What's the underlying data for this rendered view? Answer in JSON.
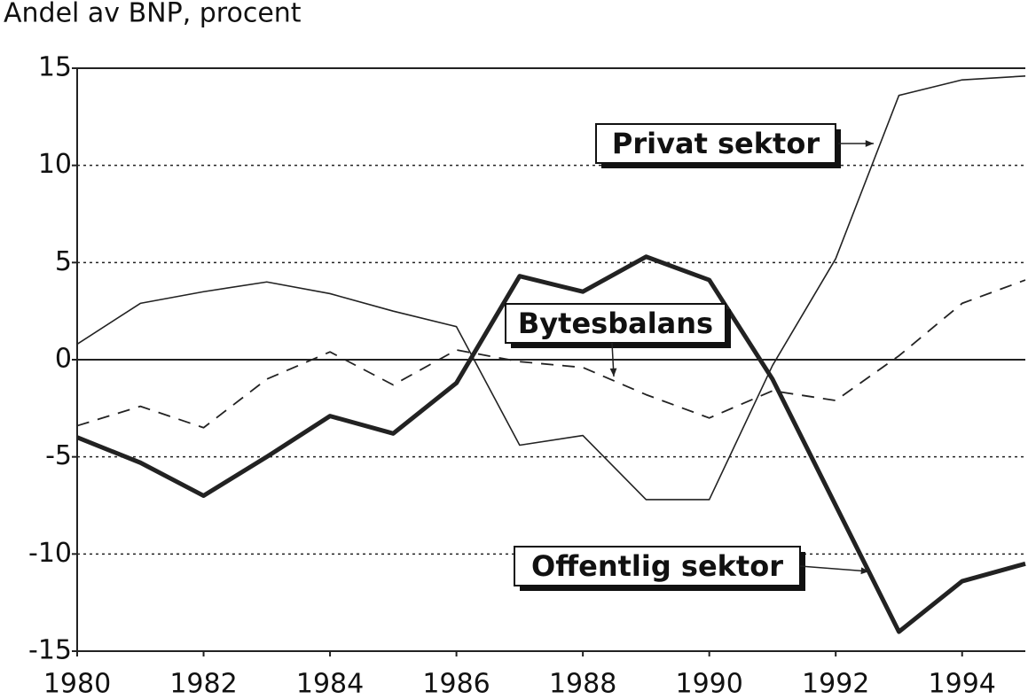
{
  "chart_data": {
    "type": "line",
    "title": "Andel av BNP, procent",
    "x": [
      1980,
      1981,
      1982,
      1983,
      1984,
      1985,
      1986,
      1987,
      1988,
      1989,
      1990,
      1991,
      1992,
      1993,
      1994,
      1995
    ],
    "series": [
      {
        "name": "Privat sektor",
        "color": "#222222",
        "style": "solid",
        "values": [
          0.8,
          2.9,
          3.5,
          4.0,
          3.4,
          2.5,
          1.7,
          -4.4,
          -3.9,
          -7.2,
          -7.2,
          -0.3,
          5.2,
          13.6,
          14.4,
          14.6
        ]
      },
      {
        "name": "Bytesbalans",
        "color": "#222222",
        "style": "dashed",
        "values": [
          -3.4,
          -2.4,
          -3.5,
          -1.0,
          0.4,
          -1.3,
          0.5,
          -0.1,
          -0.4,
          -1.8,
          -3.0,
          -1.6,
          -2.1,
          0.2,
          2.9,
          4.1
        ]
      },
      {
        "name": "Offentlig sektor",
        "color": "#222222",
        "style": "thick",
        "values": [
          -4.0,
          -5.3,
          -7.0,
          -5.0,
          -2.9,
          -3.8,
          -1.2,
          4.3,
          3.5,
          5.3,
          4.1,
          -1.0,
          -7.5,
          -14.0,
          -11.4,
          -10.5
        ]
      }
    ],
    "xlim": [
      1980,
      1995
    ],
    "xticks": [
      1980,
      1982,
      1984,
      1986,
      1988,
      1990,
      1992,
      1994
    ],
    "ylim": [
      -15,
      15
    ],
    "yticks": [
      -15,
      -10,
      -5,
      0,
      5,
      10,
      15
    ],
    "grid": true
  }
}
